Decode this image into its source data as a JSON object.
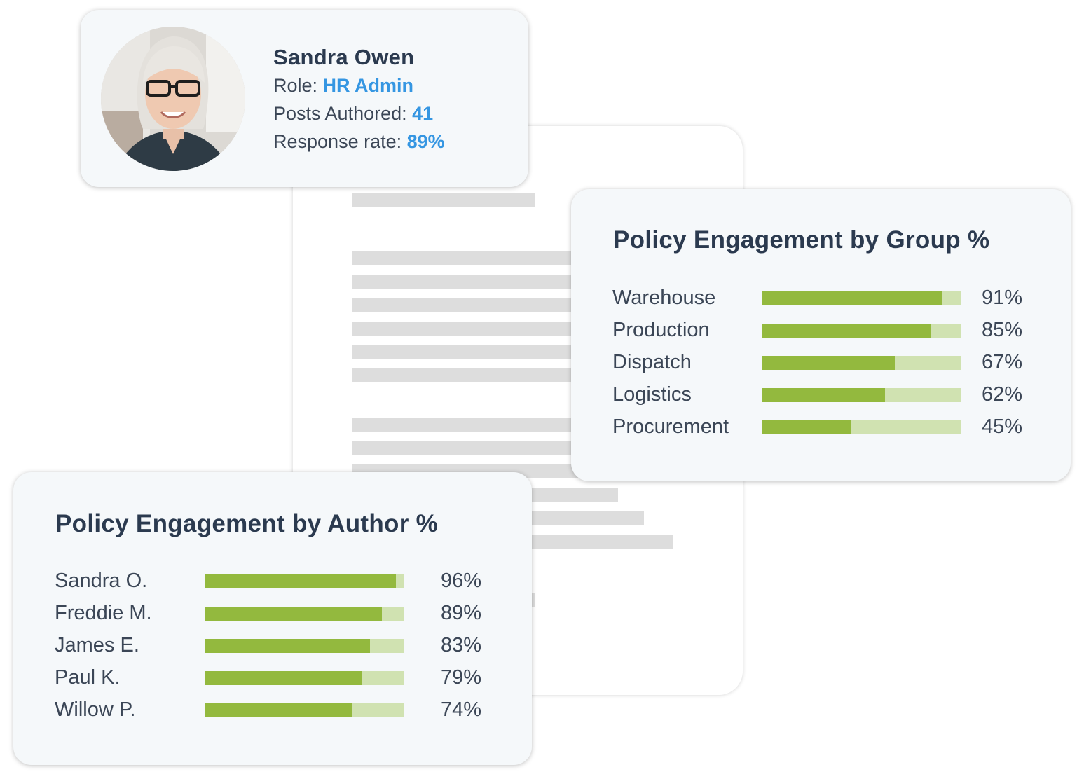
{
  "profile": {
    "name": "Sandra Owen",
    "role_label": "Role:",
    "role_value": "HR Admin",
    "posts_label": "Posts Authored:",
    "posts_value": "41",
    "response_label": "Response rate:",
    "response_value": "89%",
    "accent_color": "#3596e2"
  },
  "chart_data": [
    {
      "type": "bar",
      "title": "Policy Engagement by Group %",
      "categories": [
        "Warehouse",
        "Production",
        "Dispatch",
        "Logistics",
        "Procurement"
      ],
      "values": [
        91,
        85,
        67,
        62,
        45
      ],
      "value_labels": [
        "91%",
        "85%",
        "67%",
        "62%",
        "45%"
      ],
      "xlim": [
        0,
        100
      ],
      "orientation": "horizontal",
      "grid": false,
      "colors": {
        "fill": "#93b93e",
        "track": "#d0e2b1"
      }
    },
    {
      "type": "bar",
      "title": "Policy Engagement by Author %",
      "categories": [
        "Sandra O.",
        "Freddie M.",
        "James E.",
        "Paul K.",
        "Willow P."
      ],
      "values": [
        96,
        89,
        83,
        79,
        74
      ],
      "value_labels": [
        "96%",
        "89%",
        "83%",
        "79%",
        "74%"
      ],
      "xlim": [
        0,
        100
      ],
      "orientation": "horizontal",
      "grid": false,
      "colors": {
        "fill": "#93b93e",
        "track": "#d0e2b1"
      }
    }
  ]
}
